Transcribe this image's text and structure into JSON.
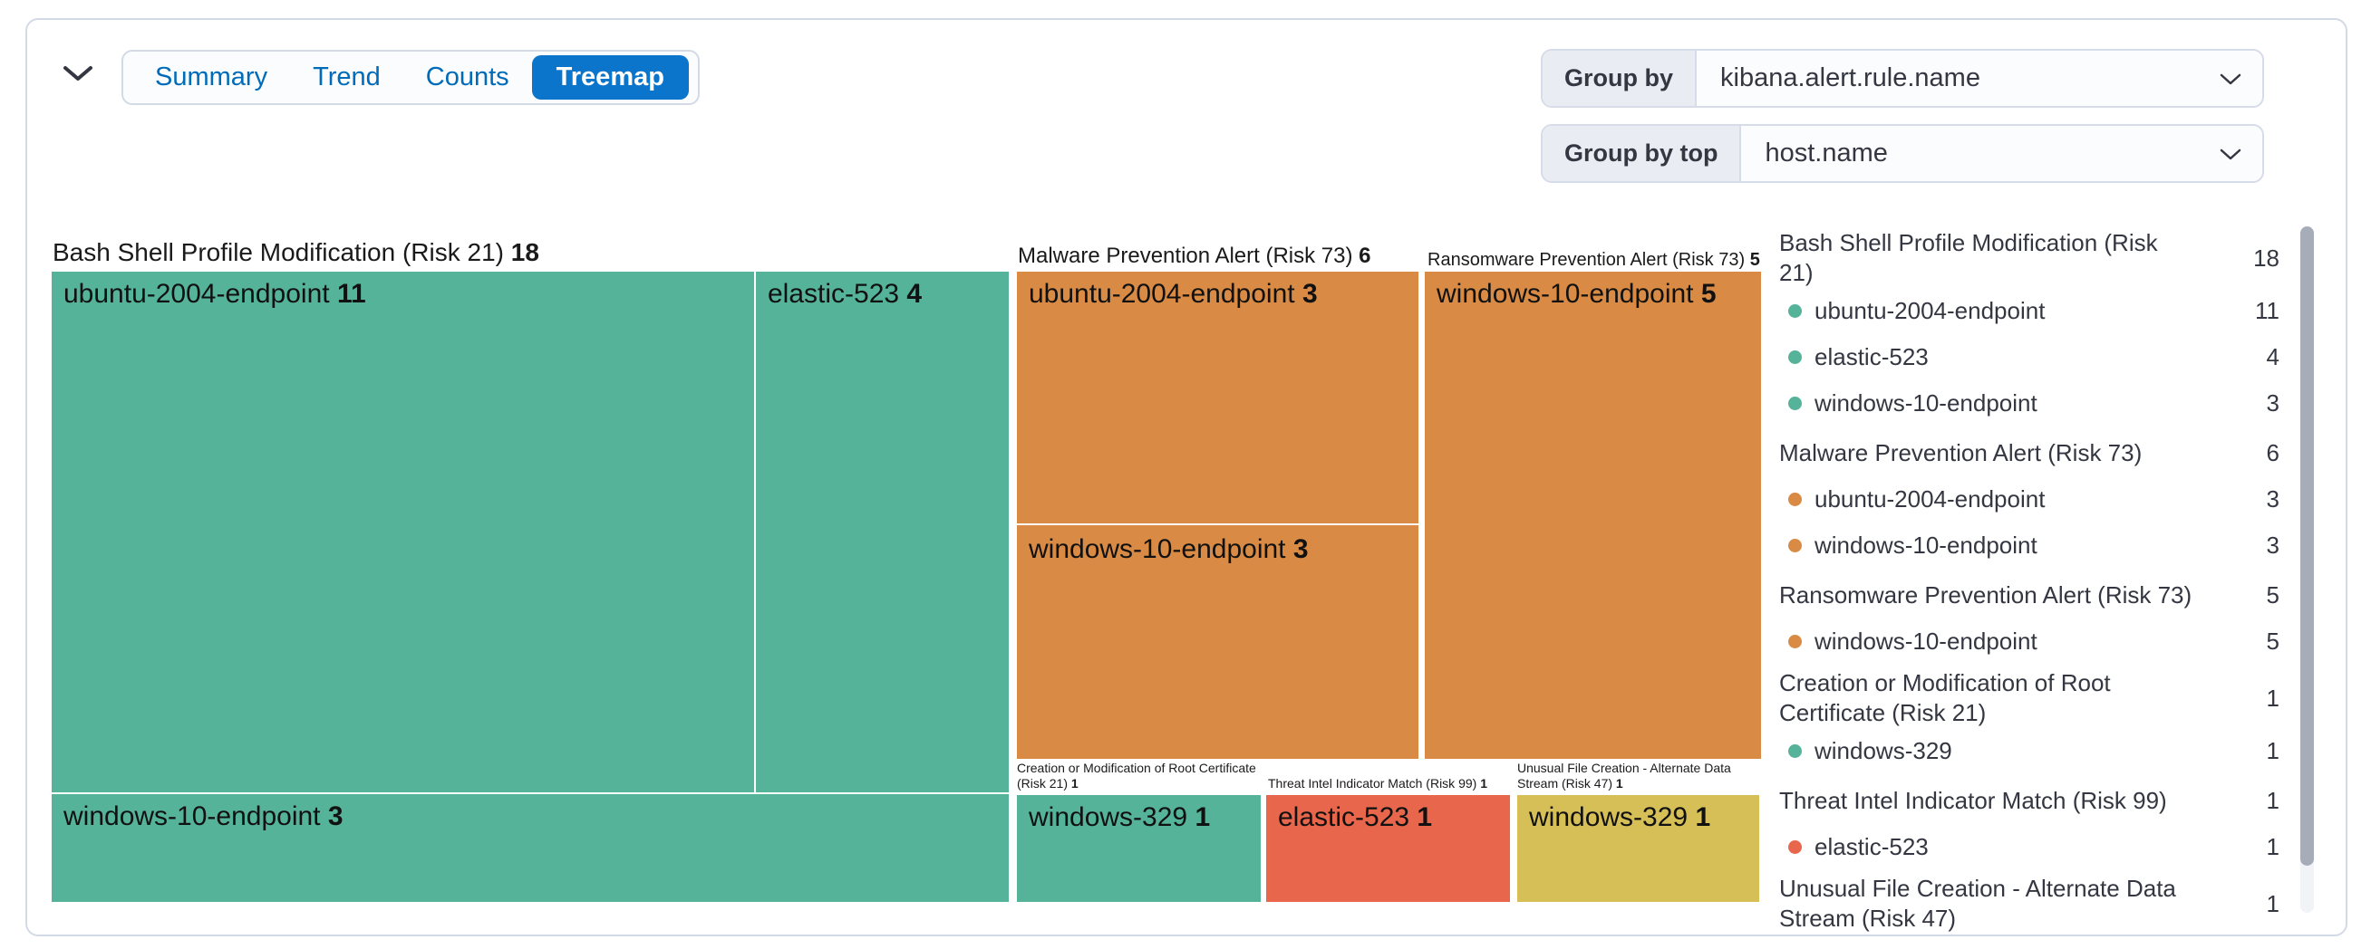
{
  "toolbar": {
    "tabs": [
      "Summary",
      "Trend",
      "Counts",
      "Treemap"
    ],
    "active_tab": "Treemap",
    "group_by": {
      "label": "Group by",
      "value": "kibana.alert.rule.name"
    },
    "group_by_top": {
      "label": "Group by top",
      "value": "host.name"
    }
  },
  "colors": {
    "green": "#54B399",
    "orange": "#D98B45",
    "red": "#E7664C",
    "yellow": "#D6BF57",
    "active_tab_blue": "#0B74CB",
    "link_blue": "#006BB8",
    "panel_border": "#D3DAE6"
  },
  "treemap": {
    "groups": [
      {
        "header": "Bash Shell Profile Modification (Risk 21)",
        "total": "18",
        "cells": [
          {
            "host": "ubuntu-2004-endpoint",
            "value": "11"
          },
          {
            "host": "elastic-523",
            "value": "4"
          },
          {
            "host": "windows-10-endpoint",
            "value": "3"
          }
        ]
      },
      {
        "header": "Malware Prevention Alert (Risk 73)",
        "total": "6",
        "cells": [
          {
            "host": "ubuntu-2004-endpoint",
            "value": "3"
          },
          {
            "host": "windows-10-endpoint",
            "value": "3"
          }
        ]
      },
      {
        "header": "Ransomware Prevention Alert (Risk 73)",
        "total": "5",
        "cells": [
          {
            "host": "windows-10-endpoint",
            "value": "5"
          }
        ]
      },
      {
        "header": "Creation or Modification of Root Certificate (Risk 21)",
        "total": "1",
        "cells": [
          {
            "host": "windows-329",
            "value": "1"
          }
        ]
      },
      {
        "header": "Threat Intel Indicator Match (Risk 99)",
        "total": "1",
        "cells": [
          {
            "host": "elastic-523",
            "value": "1"
          }
        ]
      },
      {
        "header": "Unusual File Creation - Alternate Data Stream (Risk 47)",
        "total": "1",
        "cells": [
          {
            "host": "windows-329",
            "value": "1"
          }
        ]
      }
    ]
  },
  "legend": {
    "items": [
      {
        "label": "Bash Shell Profile Modification (Risk 21)",
        "count": "18",
        "dot": null
      },
      {
        "label": "ubuntu-2004-endpoint",
        "count": "11",
        "dot": "#54B399"
      },
      {
        "label": "elastic-523",
        "count": "4",
        "dot": "#54B399"
      },
      {
        "label": "windows-10-endpoint",
        "count": "3",
        "dot": "#54B399"
      },
      {
        "label": "Malware Prevention Alert (Risk 73)",
        "count": "6",
        "dot": null
      },
      {
        "label": "ubuntu-2004-endpoint",
        "count": "3",
        "dot": "#D98B45"
      },
      {
        "label": "windows-10-endpoint",
        "count": "3",
        "dot": "#D98B45"
      },
      {
        "label": "Ransomware Prevention Alert (Risk 73)",
        "count": "5",
        "dot": null
      },
      {
        "label": "windows-10-endpoint",
        "count": "5",
        "dot": "#D98B45"
      },
      {
        "label": "Creation or Modification of Root Certificate (Risk 21)",
        "count": "1",
        "dot": null
      },
      {
        "label": "windows-329",
        "count": "1",
        "dot": "#54B399"
      },
      {
        "label": "Threat Intel Indicator Match (Risk 99)",
        "count": "1",
        "dot": null
      },
      {
        "label": "elastic-523",
        "count": "1",
        "dot": "#E7664C"
      },
      {
        "label": "Unusual File Creation - Alternate Data Stream (Risk 47)",
        "count": "1",
        "dot": null
      }
    ]
  },
  "chart_data": {
    "type": "treemap",
    "group_by": "kibana.alert.rule.name",
    "group_by_top": "host.name",
    "legend_position": "right",
    "groups": [
      {
        "name": "Bash Shell Profile Modification (Risk 21)",
        "total": 18,
        "color": "#54B399",
        "children": [
          [
            "ubuntu-2004-endpoint",
            11
          ],
          [
            "elastic-523",
            4
          ],
          [
            "windows-10-endpoint",
            3
          ]
        ]
      },
      {
        "name": "Malware Prevention Alert (Risk 73)",
        "total": 6,
        "color": "#D98B45",
        "children": [
          [
            "ubuntu-2004-endpoint",
            3
          ],
          [
            "windows-10-endpoint",
            3
          ]
        ]
      },
      {
        "name": "Ransomware Prevention Alert (Risk 73)",
        "total": 5,
        "color": "#D98B45",
        "children": [
          [
            "windows-10-endpoint",
            5
          ]
        ]
      },
      {
        "name": "Creation or Modification of Root Certificate (Risk 21)",
        "total": 1,
        "color": "#54B399",
        "children": [
          [
            "windows-329",
            1
          ]
        ]
      },
      {
        "name": "Threat Intel Indicator Match (Risk 99)",
        "total": 1,
        "color": "#E7664C",
        "children": [
          [
            "elastic-523",
            1
          ]
        ]
      },
      {
        "name": "Unusual File Creation - Alternate Data Stream (Risk 47)",
        "total": 1,
        "color": "#D6BF57",
        "children": [
          [
            "windows-329",
            1
          ]
        ]
      }
    ]
  }
}
